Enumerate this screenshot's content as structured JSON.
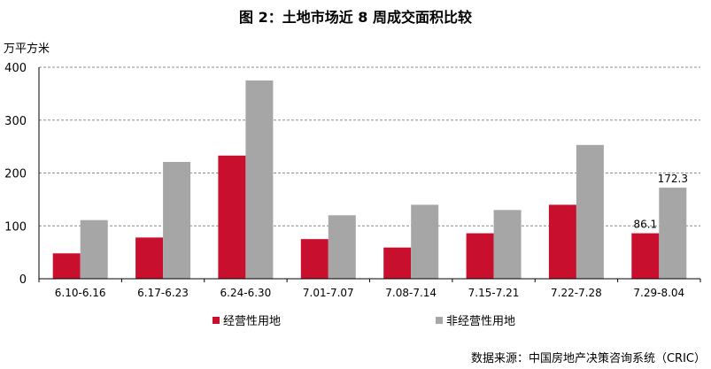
{
  "title": "图 2：土地市场近 8 周成交面积比较",
  "unit_label": "万平方米",
  "source": "数据来源：中国房地产决策咨询系统（CRIC）",
  "chart_data": {
    "type": "bar",
    "categories": [
      "6.10-6.16",
      "6.17-6.23",
      "6.24-6.30",
      "7.01-7.07",
      "7.08-7.14",
      "7.15-7.21",
      "7.22-7.28",
      "7.29-8.04"
    ],
    "series": [
      {
        "name": "经营性用地",
        "color": "#c8102e",
        "values": [
          48,
          78,
          233,
          75,
          59,
          86.1,
          140,
          86.1
        ]
      },
      {
        "name": "非经营性用地",
        "color": "#a6a6a6",
        "values": [
          111,
          221,
          375,
          120,
          140,
          130,
          253,
          172.3
        ]
      }
    ],
    "data_labels": [
      {
        "series": 0,
        "index": 7,
        "text": "86.1"
      },
      {
        "series": 1,
        "index": 7,
        "text": "172.3"
      }
    ],
    "ylim": [
      0,
      400
    ],
    "yticks": [
      0,
      100,
      200,
      300,
      400
    ],
    "grid": true,
    "legend": "bottom-left"
  }
}
